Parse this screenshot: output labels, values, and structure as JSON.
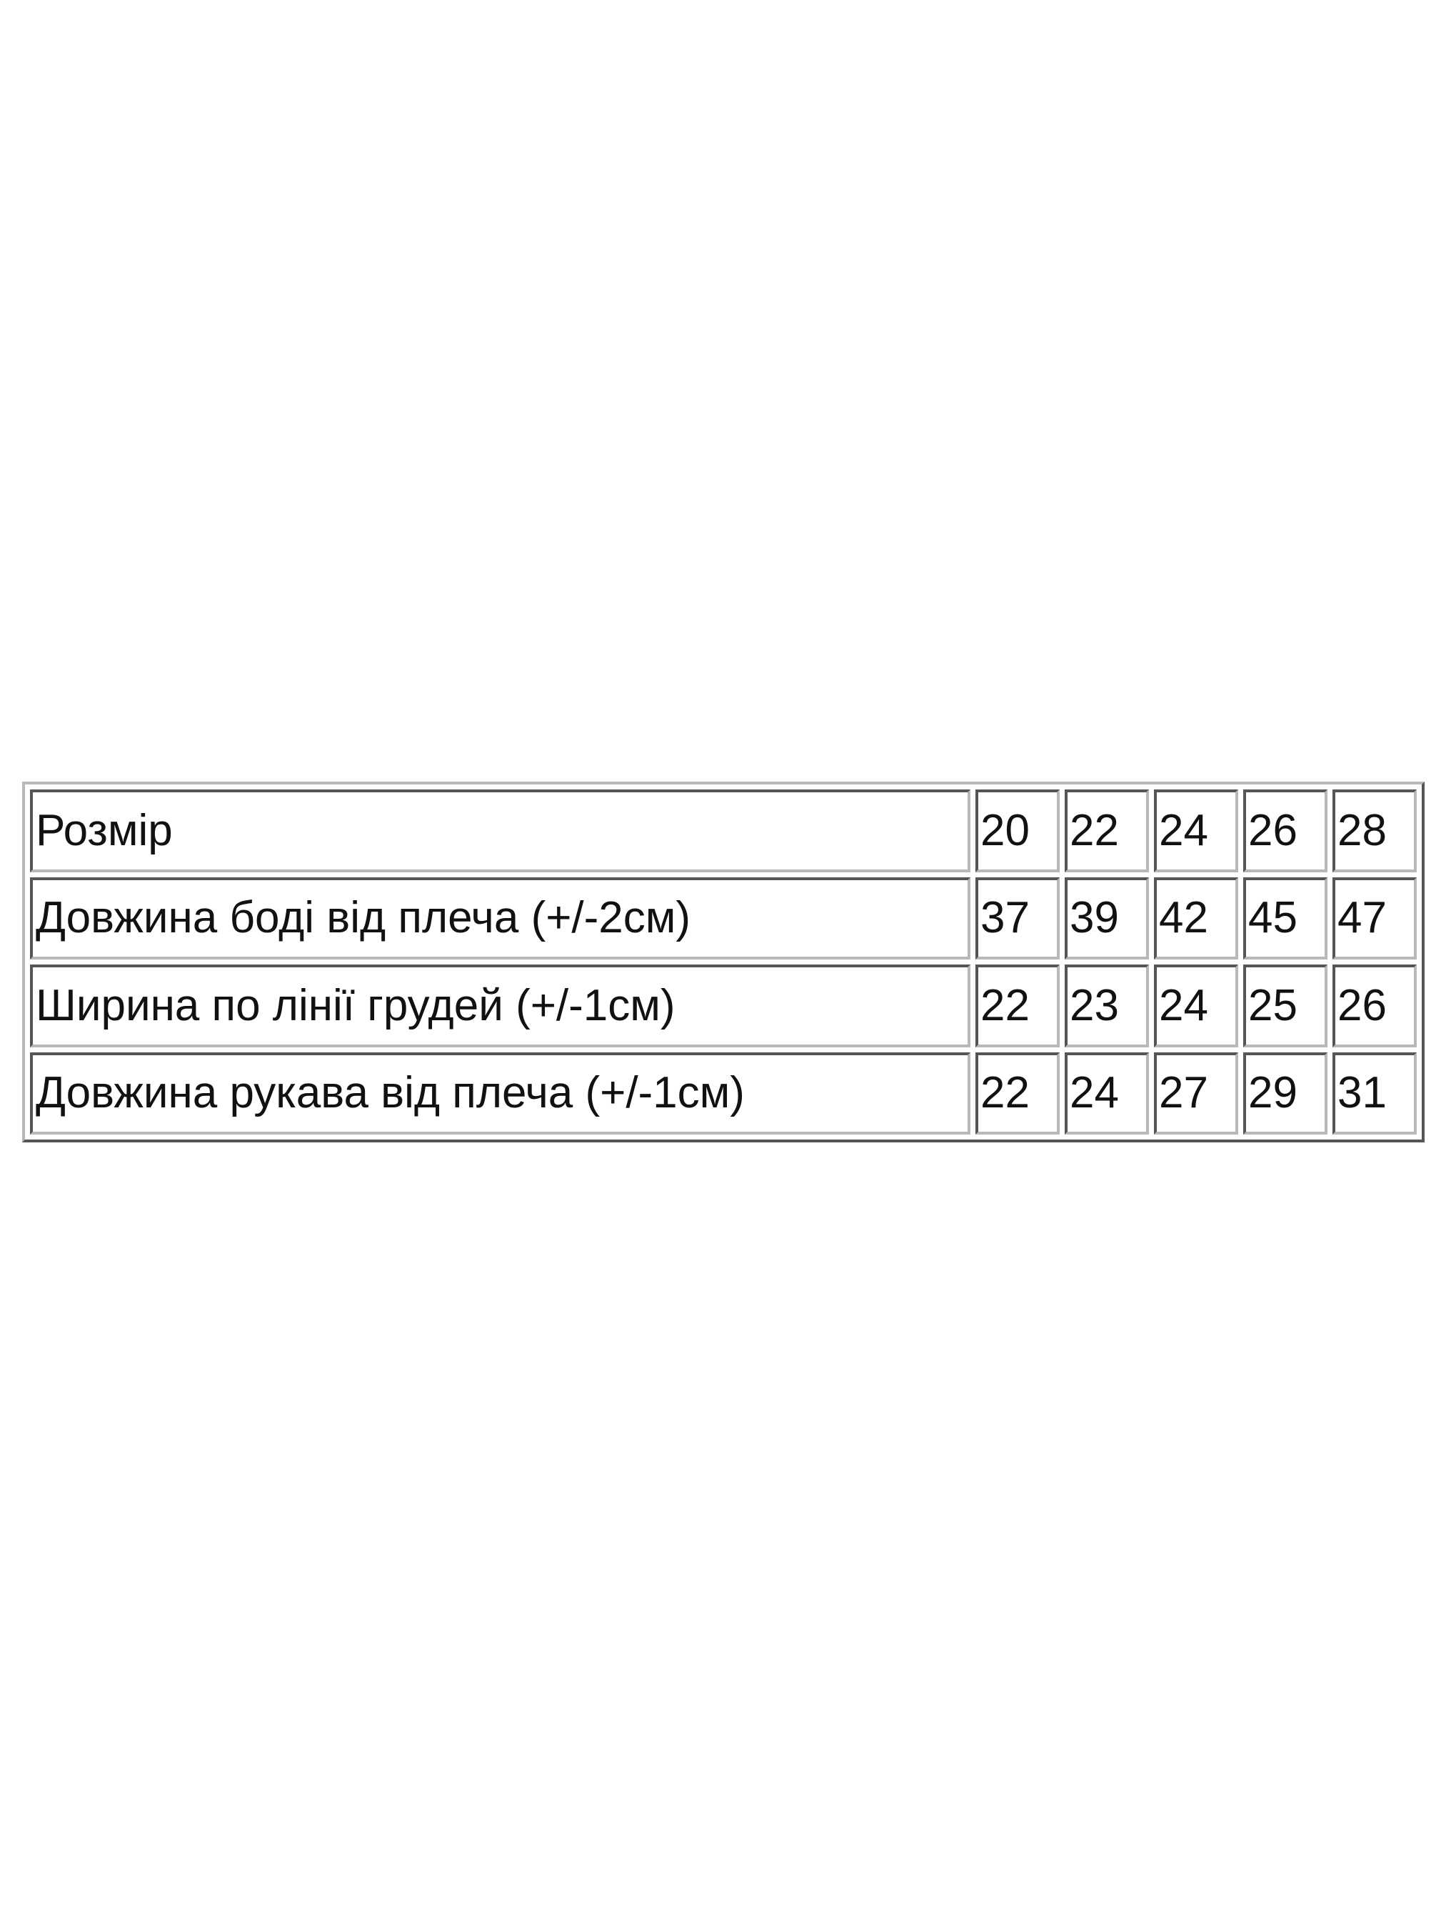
{
  "table": {
    "rows": [
      {
        "label": "Розмір",
        "values": [
          "20",
          "22",
          "24",
          "26",
          "28"
        ]
      },
      {
        "label": "Довжина боді від плеча (+/-2см)",
        "values": [
          "37",
          "39",
          "42",
          "45",
          "47"
        ]
      },
      {
        "label": "Ширина по лінії грудей (+/-1см)",
        "values": [
          "22",
          "23",
          "24",
          "25",
          "26"
        ]
      },
      {
        "label": "Довжина рукава від плеча (+/-1см)",
        "values": [
          "22",
          "24",
          "27",
          "29",
          "31"
        ]
      }
    ]
  }
}
